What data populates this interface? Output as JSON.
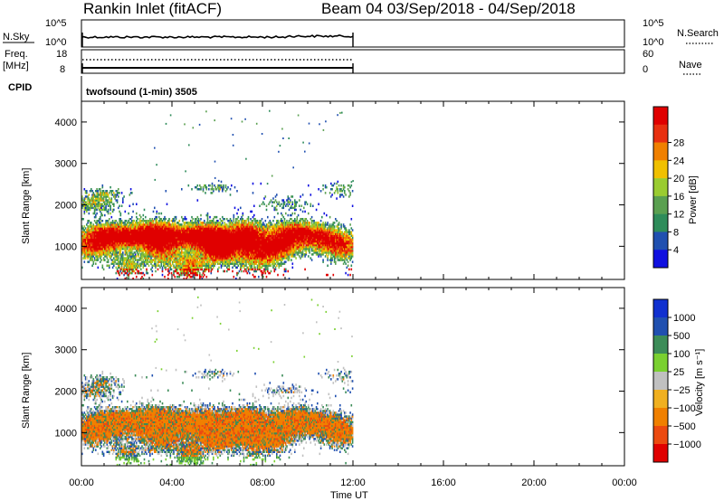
{
  "header": {
    "station": "Rankin Inlet (fitACF)",
    "beam_date": "Beam 04  03/Sep/2018 - 04/Sep/2018"
  },
  "nsky": {
    "left_label": "N.Sky",
    "left_top": "10^5",
    "left_bottom": "10^0",
    "right_top": "10^5",
    "right_bottom": "10^0",
    "right_label": "N.Search"
  },
  "freq": {
    "left_label_1": "Freq.",
    "left_label_2": "[MHz]",
    "left_top": "18",
    "left_bottom": "8",
    "right_top": "60",
    "right_bottom": "0",
    "right_label": "Nave"
  },
  "cpid": {
    "label": "CPID",
    "value": "twofsound (1-min) 3505"
  },
  "colors": {
    "power": [
      "#1010e0",
      "#2050b0",
      "#2e8c5a",
      "#5aa050",
      "#9acc30",
      "#f0c000",
      "#f08000",
      "#e83010",
      "#e00000"
    ],
    "velocity": [
      "#e00000",
      "#ec4a10",
      "#f08000",
      "#f0b020",
      "#c0c0c0",
      "#7ad030",
      "#3c8c58",
      "#2050b0",
      "#1030d0"
    ]
  },
  "chart_data": [
    {
      "type": "heatmap",
      "name": "power",
      "ylabel": "Slant Range [km]",
      "yticks": [
        "1000",
        "2000",
        "3000",
        "4000"
      ],
      "ylim": [
        200,
        4500
      ],
      "xlim_hours": [
        0,
        24
      ],
      "data_extent_hours": [
        0,
        12
      ],
      "colorbar": {
        "label": "Power [dB]",
        "ticks": [
          "4",
          "8",
          "12",
          "16",
          "20",
          "24",
          "28"
        ],
        "range": [
          0,
          32
        ]
      }
    },
    {
      "type": "heatmap",
      "name": "velocity",
      "ylabel": "Slant Range [km]",
      "yticks": [
        "1000",
        "2000",
        "3000",
        "4000"
      ],
      "ylim": [
        200,
        4500
      ],
      "xlim_hours": [
        0,
        24
      ],
      "data_extent_hours": [
        0,
        12
      ],
      "colorbar": {
        "label": "Velocity [m s⁻¹]",
        "ticks": [
          "1000",
          "500",
          "100",
          "25",
          "−25",
          "−100",
          "−500",
          "−1000"
        ]
      }
    }
  ],
  "xaxis": {
    "ticks": [
      "00:00",
      "04:00",
      "08:00",
      "12:00",
      "16:00",
      "20:00",
      "00:00"
    ],
    "label": "Time UT"
  }
}
